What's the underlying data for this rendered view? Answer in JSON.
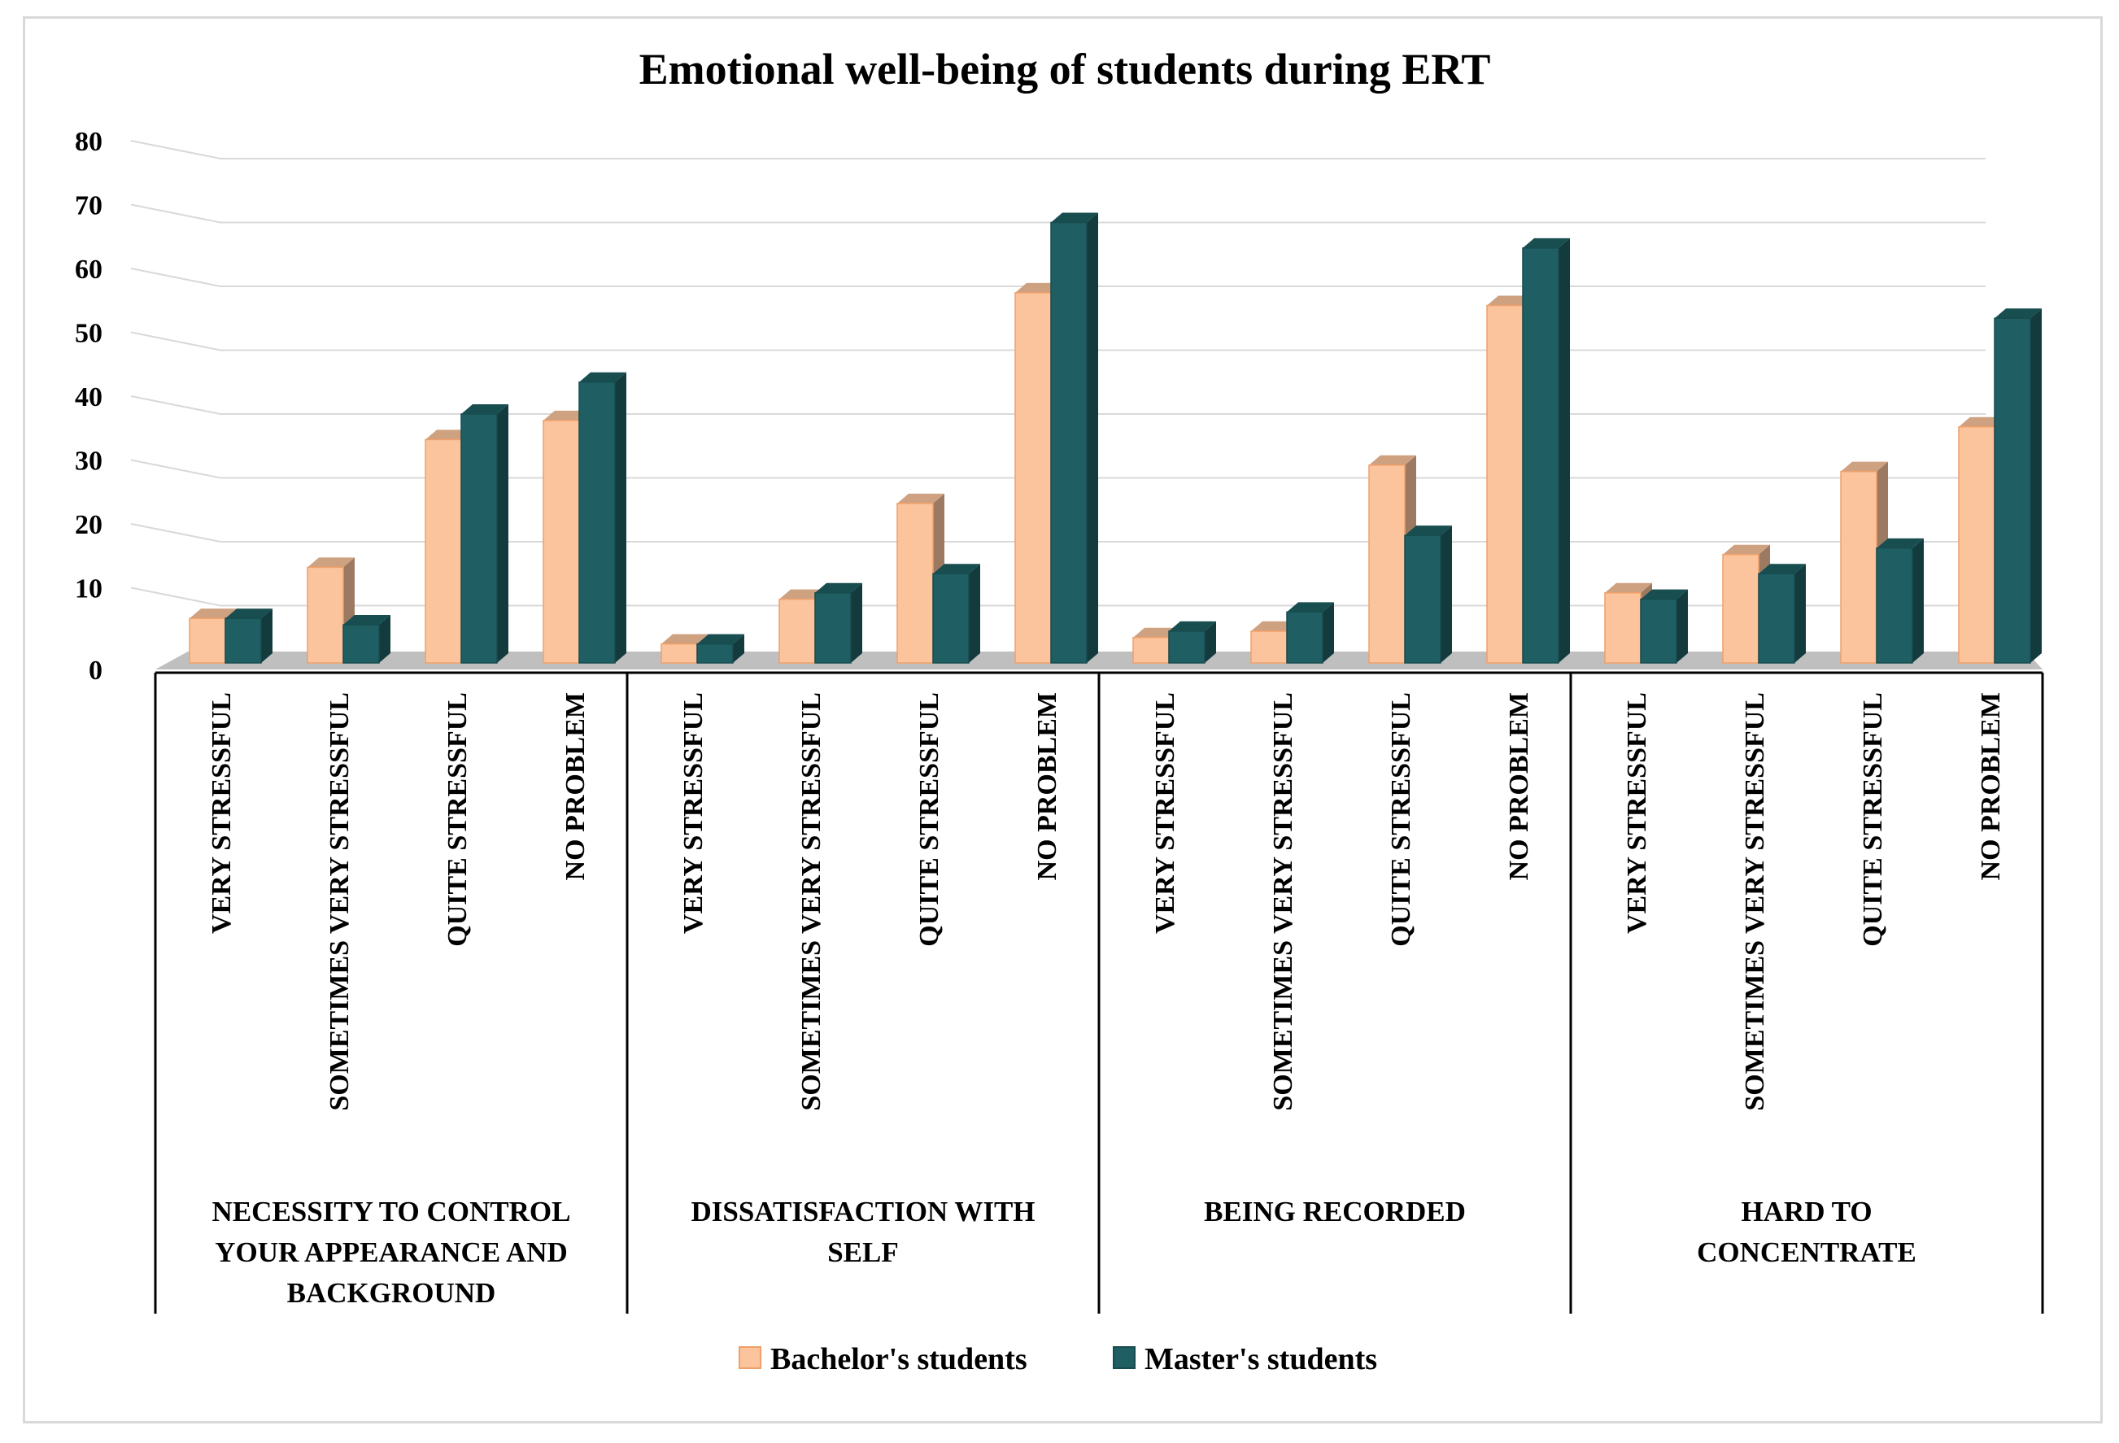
{
  "chart_data": {
    "type": "bar",
    "title": "Emotional well-being of students during ERT",
    "xlabel": "",
    "ylabel": "",
    "ylim": [
      0,
      80
    ],
    "yticks": [
      0,
      10,
      20,
      30,
      40,
      50,
      60,
      70,
      80
    ],
    "grid": true,
    "legend_position": "bottom",
    "groups": [
      {
        "label": "NECESSITY TO CONTROL YOUR APPEARANCE AND BACKGROUND",
        "label_lines": [
          "NECESSITY TO CONTROL",
          "YOUR APPEARANCE AND",
          "BACKGROUND"
        ],
        "categories": [
          "VERY STRESSFUL",
          "SOMETIMES VERY STRESSFUL",
          "QUITE STRESSFUL",
          "NO PROBLEM"
        ]
      },
      {
        "label": "DISSATISFACTION WITH SELF",
        "label_lines": [
          "DISSATISFACTION WITH",
          "SELF"
        ],
        "categories": [
          "VERY STRESSFUL",
          "SOMETIMES VERY STRESSFUL",
          "QUITE STRESSFUL",
          "NO PROBLEM"
        ]
      },
      {
        "label": "BEING RECORDED",
        "label_lines": [
          "BEING RECORDED"
        ],
        "categories": [
          "VERY STRESSFUL",
          "SOMETIMES VERY STRESSFUL",
          "QUITE STRESSFUL",
          "NO PROBLEM"
        ]
      },
      {
        "label": "HARD TO CONCENTRATE",
        "label_lines": [
          "HARD TO",
          "CONCENTRATE"
        ],
        "categories": [
          "VERY STRESSFUL",
          "SOMETIMES VERY STRESSFUL",
          "QUITE STRESSFUL",
          "NO PROBLEM"
        ]
      }
    ],
    "series": [
      {
        "name": "Bachelor's students",
        "color": "#fbc49c",
        "values": [
          8,
          16,
          36,
          39,
          4,
          11,
          26,
          59,
          5,
          6,
          32,
          57,
          12,
          18,
          31,
          38
        ]
      },
      {
        "name": "Master's students",
        "color": "#1f5f63",
        "values": [
          8,
          7,
          40,
          45,
          4,
          12,
          15,
          70,
          6,
          9,
          21,
          66,
          11,
          15,
          19,
          55
        ]
      }
    ]
  }
}
